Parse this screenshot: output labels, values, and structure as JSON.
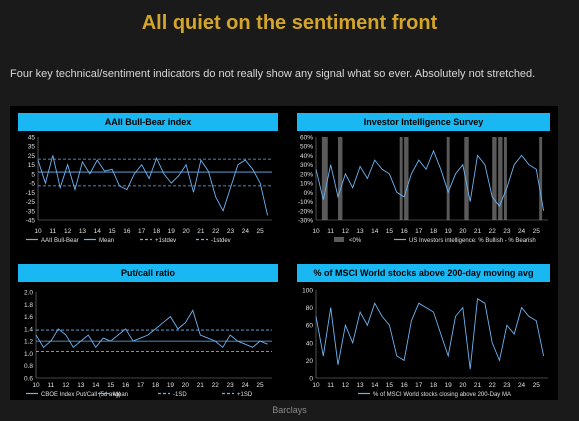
{
  "header": {
    "title": "All quiet on the sentiment front",
    "subtitle": "Four key technical/sentiment indicators do not really show any signal what so ever. Absolutely not stretched."
  },
  "footer": {
    "source": "Barclays"
  },
  "colors": {
    "title": "#d4a52a",
    "panel_header": "#1ab8f2",
    "series": "#6db3f2",
    "band": "#5a5a5a",
    "background": "#000000"
  },
  "chart_data": [
    {
      "id": "aaii",
      "type": "line",
      "title": "AAII Bull-Bear index",
      "x_ticks": [
        "10",
        "11",
        "12",
        "13",
        "14",
        "15",
        "16",
        "17",
        "18",
        "19",
        "20",
        "21",
        "22",
        "23",
        "24",
        "25"
      ],
      "xlim": [
        2010,
        2025.8
      ],
      "ylim": [
        -45,
        45
      ],
      "y_ticks": [
        45,
        35,
        25,
        15,
        5,
        -5,
        -15,
        -25,
        -35,
        -45
      ],
      "grid": false,
      "legend_position": "bottom",
      "legend": [
        "AAII Bull-Bear",
        "Mean",
        "+1stdev",
        "-1stdev"
      ],
      "series": [
        {
          "name": "AAII Bull-Bear",
          "x": [
            2010.0,
            2010.5,
            2011.0,
            2011.5,
            2012.0,
            2012.5,
            2013.0,
            2013.5,
            2014.0,
            2014.5,
            2015.0,
            2015.5,
            2016.0,
            2016.5,
            2017.0,
            2017.5,
            2018.0,
            2018.5,
            2019.0,
            2019.5,
            2020.0,
            2020.5,
            2021.0,
            2021.5,
            2022.0,
            2022.5,
            2023.0,
            2023.5,
            2024.0,
            2024.5,
            2025.0,
            2025.5
          ],
          "values": [
            20,
            -5,
            25,
            -10,
            15,
            -12,
            18,
            5,
            20,
            8,
            10,
            -8,
            -12,
            5,
            15,
            0,
            22,
            5,
            -5,
            3,
            15,
            -15,
            20,
            8,
            -20,
            -35,
            -10,
            15,
            20,
            10,
            -5,
            -40
          ]
        },
        {
          "name": "Mean",
          "values": [
            7
          ]
        },
        {
          "name": "+1stdev",
          "values": [
            21
          ]
        },
        {
          "name": "-1stdev",
          "values": [
            -8
          ]
        }
      ]
    },
    {
      "id": "ii",
      "type": "line",
      "title": "Investor Intelligence Survey",
      "x_ticks": [
        "10",
        "11",
        "12",
        "13",
        "14",
        "15",
        "16",
        "17",
        "18",
        "19",
        "20",
        "21",
        "22",
        "23",
        "24",
        "25"
      ],
      "xlim": [
        2010,
        2025.8
      ],
      "ylim": [
        -30,
        60
      ],
      "y_ticks": [
        "60%",
        "50%",
        "40%",
        "30%",
        "20%",
        "10%",
        "0%",
        "-10%",
        "-20%",
        "-30%"
      ],
      "grid": false,
      "legend_position": "bottom",
      "legend": [
        "<0%",
        "US Investors intelligence: % Bullish - % Bearish"
      ],
      "bands": [
        [
          2010.4,
          2010.8
        ],
        [
          2011.5,
          2011.8
        ],
        [
          2015.7,
          2015.9
        ],
        [
          2016.0,
          2016.3
        ],
        [
          2018.9,
          2019.1
        ],
        [
          2020.1,
          2020.4
        ],
        [
          2022.0,
          2022.3
        ],
        [
          2022.4,
          2022.7
        ],
        [
          2022.8,
          2023.0
        ],
        [
          2025.2,
          2025.4
        ]
      ],
      "series": [
        {
          "name": "US Investors intelligence: % Bullish - % Bearish",
          "x": [
            2010.0,
            2010.5,
            2011.0,
            2011.5,
            2012.0,
            2012.5,
            2013.0,
            2013.5,
            2014.0,
            2014.5,
            2015.0,
            2015.5,
            2016.0,
            2016.5,
            2017.0,
            2017.5,
            2018.0,
            2018.5,
            2019.0,
            2019.5,
            2020.0,
            2020.5,
            2021.0,
            2021.5,
            2022.0,
            2022.5,
            2023.0,
            2023.5,
            2024.0,
            2024.5,
            2025.0,
            2025.5
          ],
          "values": [
            25,
            -8,
            30,
            -5,
            20,
            5,
            28,
            15,
            35,
            25,
            20,
            0,
            -5,
            20,
            35,
            25,
            45,
            25,
            0,
            20,
            30,
            -10,
            40,
            30,
            -5,
            -15,
            5,
            30,
            40,
            30,
            25,
            -20
          ]
        }
      ]
    },
    {
      "id": "pcr",
      "type": "line",
      "title": "Put/call ratio",
      "x_ticks": [
        "10",
        "11",
        "12",
        "13",
        "14",
        "15",
        "16",
        "17",
        "18",
        "19",
        "20",
        "21",
        "22",
        "23",
        "24",
        "25"
      ],
      "xlim": [
        2010,
        2025.8
      ],
      "ylim": [
        0.6,
        2.0
      ],
      "y_ticks": [
        "2.0",
        "1.8",
        "1.6",
        "1.4",
        "1.2",
        "1.0",
        "0.8",
        "0.6"
      ],
      "grid": false,
      "legend_position": "bottom",
      "legend": [
        "CBOE Index Put/Call (5d avg)",
        "Mean",
        "-1SD",
        "+1SD"
      ],
      "series": [
        {
          "name": "CBOE Index Put/Call (5d avg)",
          "x": [
            2010.0,
            2010.5,
            2011.0,
            2011.5,
            2012.0,
            2012.5,
            2013.0,
            2013.5,
            2014.0,
            2014.5,
            2015.0,
            2015.5,
            2016.0,
            2016.5,
            2017.0,
            2017.5,
            2018.0,
            2018.5,
            2019.0,
            2019.5,
            2020.0,
            2020.5,
            2021.0,
            2021.5,
            2022.0,
            2022.5,
            2023.0,
            2023.5,
            2024.0,
            2024.5,
            2025.0,
            2025.5
          ],
          "values": [
            1.3,
            1.1,
            1.2,
            1.4,
            1.3,
            1.1,
            1.2,
            1.3,
            1.1,
            1.25,
            1.2,
            1.3,
            1.4,
            1.2,
            1.25,
            1.3,
            1.4,
            1.5,
            1.6,
            1.4,
            1.5,
            1.7,
            1.3,
            1.25,
            1.2,
            1.1,
            1.3,
            1.2,
            1.15,
            1.1,
            1.2,
            1.15
          ]
        },
        {
          "name": "Mean",
          "values": [
            1.2
          ]
        },
        {
          "name": "-1SD",
          "values": [
            1.03
          ]
        },
        {
          "name": "+1SD",
          "values": [
            1.38
          ]
        }
      ]
    },
    {
      "id": "msci",
      "type": "line",
      "title": "% of MSCI World stocks above 200-day moving avg",
      "x_ticks": [
        "10",
        "11",
        "12",
        "13",
        "14",
        "15",
        "16",
        "17",
        "18",
        "19",
        "20",
        "21",
        "22",
        "23",
        "24",
        "25"
      ],
      "xlim": [
        2010,
        2025.8
      ],
      "ylim": [
        0,
        100
      ],
      "y_ticks": [
        "100",
        "80",
        "60",
        "40",
        "20",
        "0"
      ],
      "grid": false,
      "legend_position": "bottom",
      "legend": [
        "% of MSCI World stocks closing above 200-Day MA"
      ],
      "series": [
        {
          "name": "% of MSCI World stocks closing above 200-Day MA",
          "x": [
            2010.0,
            2010.5,
            2011.0,
            2011.5,
            2012.0,
            2012.5,
            2013.0,
            2013.5,
            2014.0,
            2014.5,
            2015.0,
            2015.5,
            2016.0,
            2016.5,
            2017.0,
            2017.5,
            2018.0,
            2018.5,
            2019.0,
            2019.5,
            2020.0,
            2020.5,
            2021.0,
            2021.5,
            2022.0,
            2022.5,
            2023.0,
            2023.5,
            2024.0,
            2024.5,
            2025.0,
            2025.5
          ],
          "values": [
            70,
            25,
            80,
            15,
            60,
            40,
            75,
            60,
            85,
            70,
            60,
            25,
            20,
            65,
            85,
            80,
            75,
            50,
            25,
            70,
            80,
            10,
            90,
            85,
            40,
            20,
            60,
            50,
            80,
            70,
            65,
            25
          ]
        }
      ]
    }
  ]
}
